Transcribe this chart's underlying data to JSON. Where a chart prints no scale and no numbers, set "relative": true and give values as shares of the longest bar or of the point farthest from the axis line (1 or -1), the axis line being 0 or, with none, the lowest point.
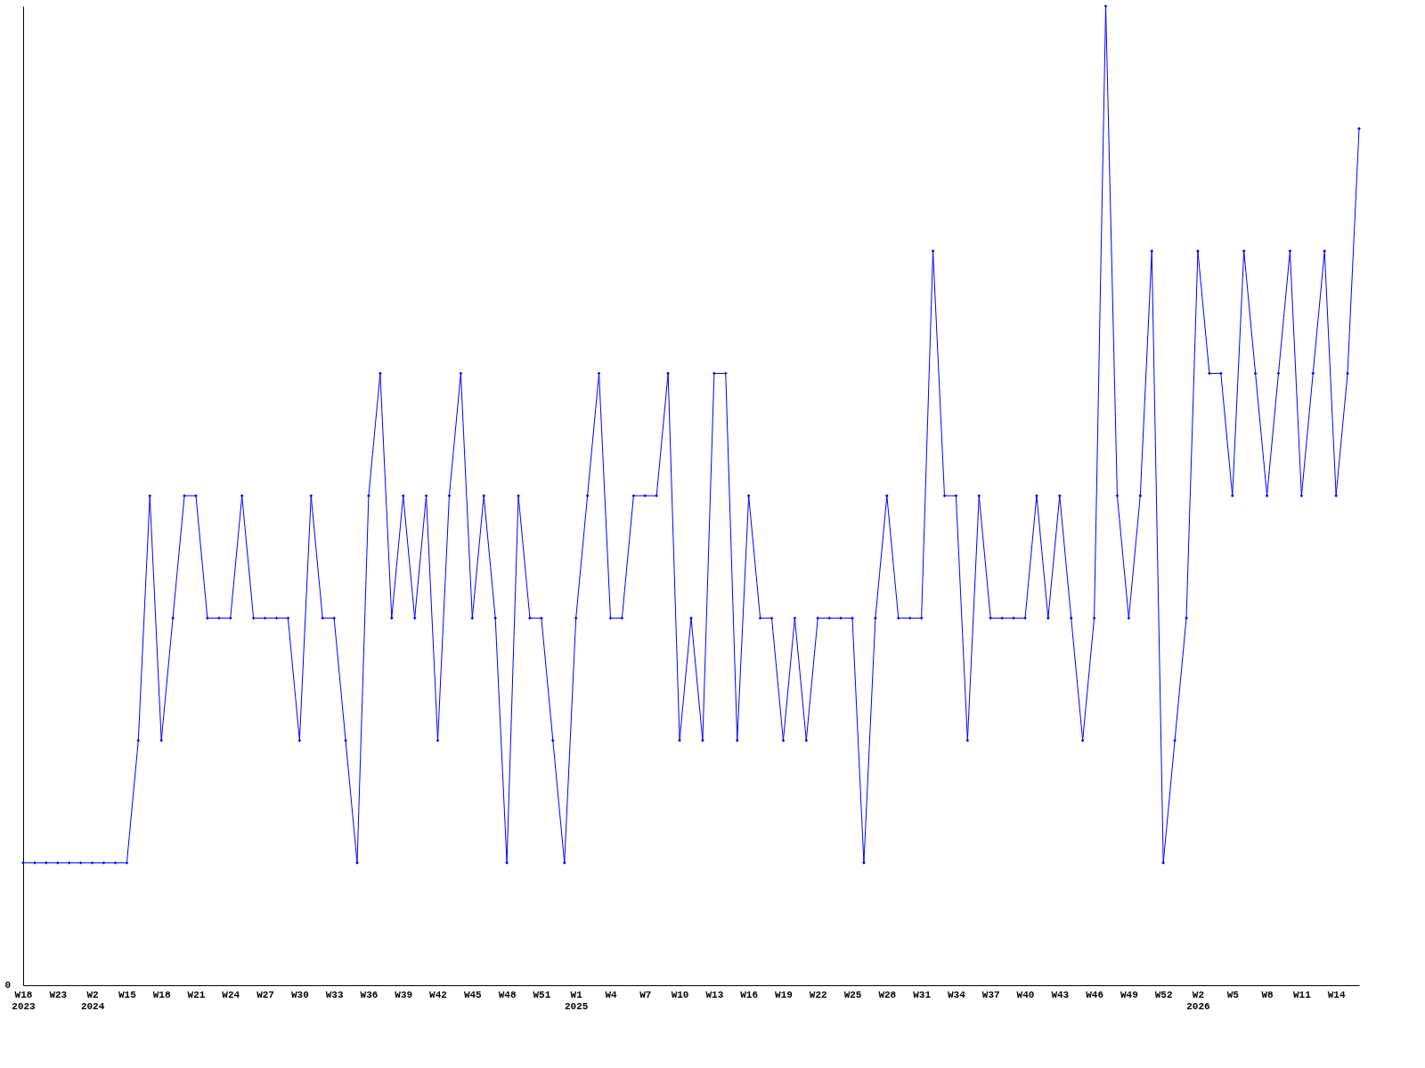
{
  "chart_data": {
    "type": "line",
    "relative": true,
    "categories": [
      "W18\n2023",
      null,
      null,
      "W23",
      null,
      null,
      "W2\n2024",
      null,
      null,
      "W15",
      null,
      null,
      "W18",
      null,
      null,
      "W21",
      null,
      null,
      "W24",
      null,
      null,
      "W27",
      null,
      null,
      "W30",
      null,
      null,
      "W33",
      null,
      null,
      "W36",
      null,
      null,
      "W39",
      null,
      null,
      "W42",
      null,
      null,
      "W45",
      null,
      null,
      "W48",
      null,
      null,
      "W51",
      null,
      null,
      "W1\n2025",
      null,
      null,
      "W4",
      null,
      null,
      "W7",
      null,
      null,
      "W10",
      null,
      null,
      "W13",
      null,
      null,
      "W16",
      null,
      null,
      "W19",
      null,
      null,
      "W22",
      null,
      null,
      "W25",
      null,
      null,
      "W28",
      null,
      null,
      "W31",
      null,
      null,
      "W34",
      null,
      null,
      "W37",
      null,
      null,
      "W40",
      null,
      null,
      "W43",
      null,
      null,
      "W46",
      null,
      null,
      "W49",
      null,
      null,
      "W52",
      null,
      null,
      "W2\n2026",
      null,
      null,
      "W5",
      null,
      null,
      "W8",
      null,
      null,
      "W11",
      null,
      null,
      "W14",
      null,
      null
    ],
    "values": [
      0.125,
      0.125,
      0.125,
      0.125,
      0.125,
      0.125,
      0.125,
      0.125,
      0.125,
      0.125,
      0.25,
      0.5,
      0.25,
      0.375,
      0.5,
      0.5,
      0.375,
      0.375,
      0.375,
      0.5,
      0.375,
      0.375,
      0.375,
      0.375,
      0.25,
      0.5,
      0.375,
      0.375,
      0.25,
      0.125,
      0.5,
      0.625,
      0.375,
      0.5,
      0.375,
      0.5,
      0.25,
      0.5,
      0.625,
      0.375,
      0.5,
      0.375,
      0.125,
      0.5,
      0.375,
      0.375,
      0.25,
      0.125,
      0.375,
      0.5,
      0.625,
      0.375,
      0.375,
      0.5,
      0.5,
      0.5,
      0.625,
      0.25,
      0.375,
      0.25,
      0.625,
      0.625,
      0.25,
      0.5,
      0.375,
      0.375,
      0.25,
      0.375,
      0.25,
      0.375,
      0.375,
      0.375,
      0.375,
      0.125,
      0.375,
      0.5,
      0.375,
      0.375,
      0.375,
      0.75,
      0.5,
      0.5,
      0.25,
      0.5,
      0.375,
      0.375,
      0.375,
      0.375,
      0.5,
      0.375,
      0.5,
      0.375,
      0.25,
      0.375,
      1,
      0.5,
      0.375,
      0.5,
      0.75,
      0.125,
      0.25,
      0.375,
      0.75,
      0.625,
      0.625,
      0.5,
      0.75,
      0.625,
      0.5,
      0.625,
      0.75,
      0.5,
      0.625,
      0.75,
      0.5,
      0.625,
      0.875
    ],
    "color": "#0000ff",
    "marker": "diamond",
    "line_style": "solid",
    "grid": false,
    "annotations": [
      "0"
    ]
  }
}
